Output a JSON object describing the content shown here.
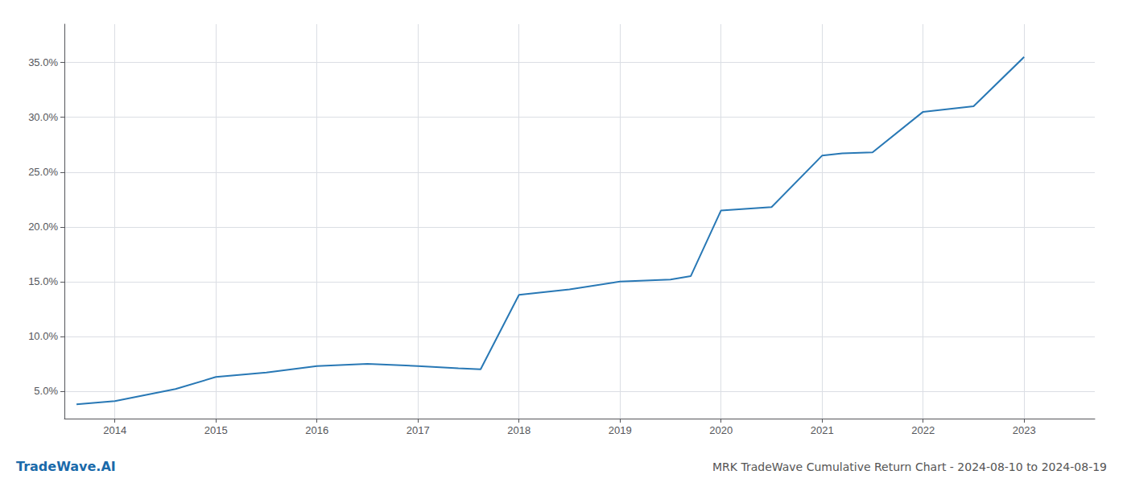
{
  "chart_data": {
    "type": "line",
    "title": "MRK TradeWave Cumulative Return Chart - 2024-08-10 to 2024-08-19",
    "annotations": [
      "TradeWave.AI"
    ],
    "x": [
      2013.62,
      2014.0,
      2014.6,
      2015.0,
      2015.5,
      2016.0,
      2016.5,
      2017.0,
      2017.4,
      2017.62,
      2018.0,
      2018.5,
      2019.0,
      2019.5,
      2019.7,
      2020.0,
      2020.5,
      2021.0,
      2021.2,
      2021.5,
      2022.0,
      2022.5,
      2023.0
    ],
    "values": [
      0.038,
      0.041,
      0.052,
      0.063,
      0.067,
      0.073,
      0.075,
      0.073,
      0.071,
      0.07,
      0.138,
      0.143,
      0.15,
      0.152,
      0.155,
      0.215,
      0.218,
      0.265,
      0.267,
      0.268,
      0.305,
      0.31,
      0.355
    ],
    "color": "#2878b5",
    "xlim": [
      2013.5,
      2023.7
    ],
    "xticks": [
      2014,
      2015,
      2016,
      2017,
      2018,
      2019,
      2020,
      2021,
      2022,
      2023
    ],
    "ylim": [
      0.025,
      0.385
    ],
    "yticks": [
      {
        "value": 0.05,
        "label": "5.0%"
      },
      {
        "value": 0.1,
        "label": "10.0%"
      },
      {
        "value": 0.15,
        "label": "15.0%"
      },
      {
        "value": 0.2,
        "label": "20.0%"
      },
      {
        "value": 0.25,
        "label": "25.0%"
      },
      {
        "value": 0.3,
        "label": "30.0%"
      },
      {
        "value": 0.35,
        "label": "35.0%"
      }
    ],
    "grid": true
  }
}
